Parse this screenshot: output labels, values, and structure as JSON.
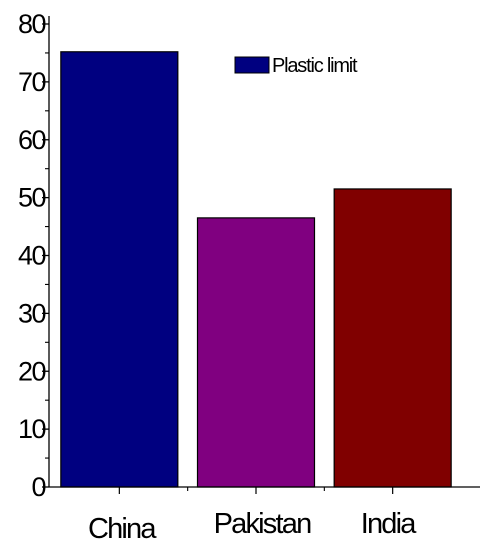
{
  "chart_data": {
    "type": "bar",
    "categories": [
      "China",
      "Pakistan",
      "India"
    ],
    "series": [
      {
        "name": "Plastic limit",
        "values": [
          75.2,
          46.5,
          51.5
        ]
      }
    ],
    "bar_colors": [
      "#000080",
      "#800080",
      "#800000"
    ],
    "title": "",
    "xlabel": "",
    "ylabel": "",
    "ylim": [
      0,
      80
    ],
    "yticks": [
      "0",
      "10",
      "20",
      "30",
      "40",
      "50",
      "60",
      "70",
      "80"
    ],
    "grid": false,
    "legend_position": "top-right"
  }
}
